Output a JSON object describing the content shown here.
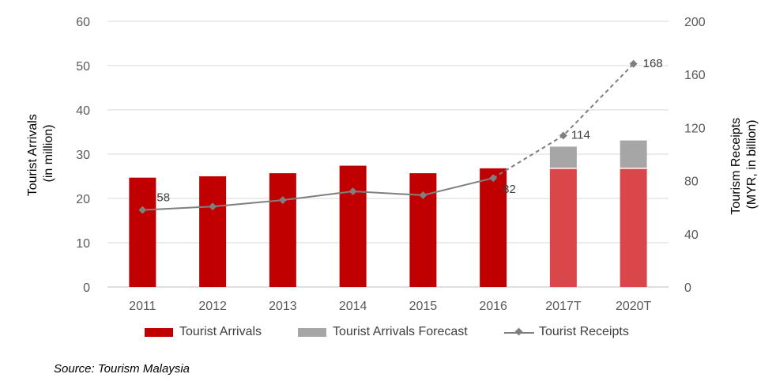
{
  "chart_data": {
    "type": "bar",
    "categories": [
      "2011",
      "2012",
      "2013",
      "2014",
      "2015",
      "2016",
      "2017T",
      "2020T"
    ],
    "series": [
      {
        "name": "Tourist Arrivals",
        "type": "bar",
        "axis": "left",
        "color": "#c00000",
        "values": [
          24.7,
          25.0,
          25.7,
          27.4,
          25.7,
          26.8,
          null,
          null
        ]
      },
      {
        "name": "Tourist Arrivals",
        "type": "bar",
        "axis": "left",
        "color": "#d9474b",
        "values": [
          null,
          null,
          null,
          null,
          null,
          null,
          26.8,
          26.8
        ]
      },
      {
        "name": "Tourist Arrivals Forecast",
        "type": "bar",
        "axis": "left",
        "color": "#a6a6a6",
        "values": [
          null,
          null,
          null,
          null,
          null,
          null,
          4.9,
          6.3
        ]
      },
      {
        "name": "Tourist Receipts",
        "type": "line",
        "axis": "right",
        "color": "#7f7f7f",
        "values": [
          58,
          60.6,
          65.4,
          72,
          69.1,
          82,
          114,
          168
        ],
        "data_labels": [
          "58",
          "",
          "",
          "",
          "",
          "82",
          "114",
          "168"
        ]
      }
    ],
    "ylabel": "Tourist Arrivals\n(in million)",
    "y2label": "Tourism Receipts\n(MYR, in billion)",
    "ylim": [
      0,
      60
    ],
    "y2lim": [
      0,
      200
    ],
    "yticks": [
      0,
      10,
      20,
      30,
      40,
      50,
      60
    ],
    "y2ticks": [
      0,
      40,
      80,
      120,
      160,
      200
    ],
    "grid": true,
    "legend_position": "bottom"
  },
  "legend": [
    {
      "label": "Tourist Arrivals",
      "color": "#c00000"
    },
    {
      "label": "Tourist Arrivals Forecast",
      "color": "#a6a6a6"
    },
    {
      "label": "Tourist Receipts",
      "color": "#7f7f7f"
    }
  ],
  "source": "Source: Tourism Malaysia"
}
